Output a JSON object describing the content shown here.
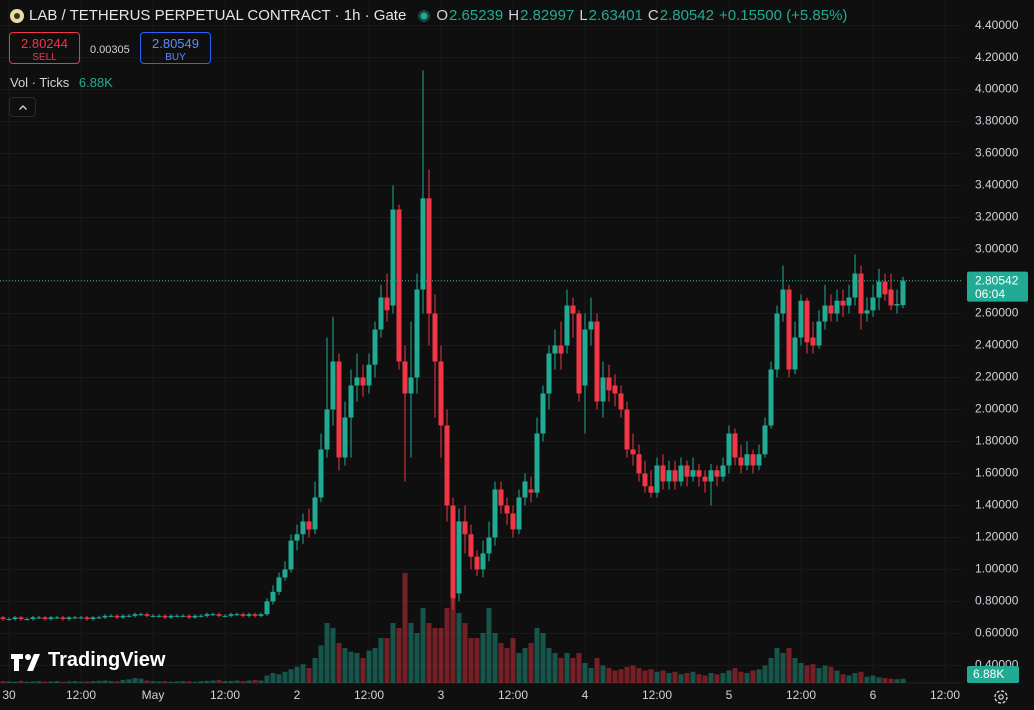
{
  "header": {
    "title": "LAB / TETHERUS PERPETUAL CONTRACT · 1h · Gate",
    "open_label": "O",
    "high_label": "H",
    "low_label": "L",
    "close_label": "C",
    "change": "+0.15500 (+5.85%)",
    "sell_price": "2.80244",
    "sell_label": "SELL",
    "spread": "0.00305",
    "buy_price": "2.80549",
    "buy_label": "BUY",
    "indicator": "Vol · Ticks",
    "last_volume": "6.88K",
    "countdown": "06:04",
    "brand": "TradingView"
  },
  "chart_data": {
    "type": "candlestick",
    "up_color": "#22ab94",
    "down_color": "#f23645",
    "grid": true,
    "categories": [
      null,
      "30",
      null,
      null,
      null,
      null,
      null,
      null,
      null,
      null,
      null,
      null,
      null,
      "12:00",
      null,
      null,
      null,
      null,
      null,
      null,
      null,
      null,
      null,
      null,
      null,
      "May",
      null,
      null,
      null,
      null,
      null,
      null,
      null,
      null,
      null,
      null,
      null,
      "12:00",
      null,
      null,
      null,
      null,
      null,
      null,
      null,
      null,
      null,
      null,
      null,
      "2",
      null,
      null,
      null,
      null,
      null,
      null,
      null,
      null,
      null,
      null,
      null,
      "12:00",
      null,
      null,
      null,
      null,
      null,
      null,
      null,
      null,
      null,
      null,
      null,
      "3",
      null,
      null,
      null,
      null,
      null,
      null,
      null,
      null,
      null,
      null,
      null,
      "12:00",
      null,
      null,
      null,
      null,
      null,
      null,
      null,
      null,
      null,
      null,
      null,
      "4",
      null,
      null,
      null,
      null,
      null,
      null,
      null,
      null,
      null,
      null,
      null,
      "12:00",
      null,
      null,
      null,
      null,
      null,
      null,
      null,
      null,
      null,
      null,
      null,
      "5",
      null,
      null,
      null,
      null,
      null,
      null,
      null,
      null,
      null,
      null,
      null,
      "12:00",
      null,
      null,
      null,
      null,
      null,
      null,
      null,
      null,
      null,
      null,
      null,
      "6",
      null,
      null,
      null,
      null,
      null,
      null,
      null,
      null,
      null,
      null,
      null,
      "12:00"
    ],
    "open": [
      0.7,
      0.69,
      0.69,
      0.7,
      0.69,
      0.69,
      0.7,
      0.7,
      0.69,
      0.7,
      0.7,
      0.69,
      0.7,
      0.7,
      0.7,
      0.69,
      0.7,
      0.7,
      0.71,
      0.71,
      0.7,
      0.71,
      0.71,
      0.72,
      0.72,
      0.71,
      0.71,
      0.71,
      0.7,
      0.71,
      0.71,
      0.71,
      0.7,
      0.71,
      0.71,
      0.72,
      0.72,
      0.71,
      0.71,
      0.72,
      0.72,
      0.71,
      0.72,
      0.71,
      0.72,
      0.8,
      0.86,
      0.95,
      1.0,
      1.18,
      1.22,
      1.3,
      1.25,
      1.45,
      1.75,
      2.0,
      2.3,
      1.7,
      1.95,
      2.15,
      2.2,
      2.15,
      2.28,
      2.5,
      2.7,
      2.65,
      3.25,
      2.3,
      2.1,
      2.2,
      2.75,
      3.32,
      2.6,
      2.3,
      1.9,
      1.4,
      0.85,
      1.3,
      1.22,
      1.08,
      1.0,
      1.1,
      1.2,
      1.5,
      1.4,
      1.35,
      1.25,
      1.45,
      1.5,
      1.48,
      1.85,
      2.1,
      2.35,
      2.4,
      2.4,
      2.65,
      2.6,
      2.15,
      2.5,
      2.55,
      2.05,
      2.2,
      2.15,
      2.1,
      2.0,
      1.75,
      1.72,
      1.6,
      1.52,
      1.48,
      1.65,
      1.55,
      1.62,
      1.55,
      1.65,
      1.58,
      1.62,
      1.58,
      1.55,
      1.62,
      1.58,
      1.65,
      1.85,
      1.7,
      1.65,
      1.72,
      1.65,
      1.72,
      1.9,
      2.25,
      2.6,
      2.75,
      2.25,
      2.45,
      2.68,
      2.45,
      2.4,
      2.55,
      2.65,
      2.6,
      2.68,
      2.65,
      2.7,
      2.85,
      2.6,
      2.62,
      2.7,
      2.8,
      2.75,
      2.65,
      2.65239,
      null,
      null,
      null,
      null,
      null,
      null,
      null
    ],
    "high": [
      0.71,
      0.7,
      0.71,
      0.71,
      0.7,
      0.71,
      0.71,
      0.71,
      0.71,
      0.71,
      0.71,
      0.71,
      0.71,
      0.71,
      0.71,
      0.71,
      0.71,
      0.72,
      0.72,
      0.72,
      0.72,
      0.72,
      0.73,
      0.73,
      0.73,
      0.72,
      0.72,
      0.72,
      0.72,
      0.72,
      0.72,
      0.72,
      0.72,
      0.72,
      0.73,
      0.73,
      0.73,
      0.72,
      0.73,
      0.73,
      0.73,
      0.73,
      0.73,
      0.73,
      0.82,
      0.9,
      0.98,
      1.05,
      1.22,
      1.28,
      1.35,
      1.38,
      1.55,
      1.85,
      2.45,
      2.58,
      2.35,
      2.05,
      2.25,
      2.35,
      2.28,
      2.35,
      2.55,
      2.78,
      2.85,
      3.4,
      3.28,
      2.4,
      2.55,
      2.85,
      4.12,
      3.5,
      2.72,
      2.4,
      2.0,
      1.45,
      1.38,
      1.4,
      1.28,
      1.12,
      1.18,
      1.3,
      1.55,
      1.55,
      1.45,
      1.4,
      1.5,
      1.6,
      1.58,
      1.95,
      2.15,
      2.4,
      2.5,
      2.55,
      2.75,
      2.7,
      2.62,
      2.6,
      2.7,
      2.6,
      2.3,
      2.28,
      2.22,
      2.15,
      2.05,
      1.85,
      1.78,
      1.68,
      1.62,
      1.7,
      1.72,
      1.68,
      1.68,
      1.7,
      1.68,
      1.7,
      1.66,
      1.62,
      1.66,
      1.65,
      1.7,
      1.9,
      1.88,
      1.78,
      1.8,
      1.75,
      1.78,
      1.95,
      2.3,
      2.65,
      2.9,
      2.78,
      2.55,
      2.72,
      2.7,
      2.55,
      2.62,
      2.78,
      2.72,
      2.75,
      2.75,
      2.78,
      2.97,
      2.9,
      2.7,
      2.78,
      2.88,
      2.85,
      2.85,
      2.75,
      2.82997,
      null,
      null,
      null,
      null,
      null,
      null,
      null
    ],
    "low": [
      0.68,
      0.68,
      0.68,
      0.68,
      0.68,
      0.68,
      0.69,
      0.68,
      0.68,
      0.69,
      0.68,
      0.68,
      0.69,
      0.69,
      0.68,
      0.68,
      0.69,
      0.69,
      0.7,
      0.69,
      0.69,
      0.7,
      0.7,
      0.71,
      0.7,
      0.7,
      0.7,
      0.69,
      0.69,
      0.7,
      0.7,
      0.69,
      0.69,
      0.7,
      0.7,
      0.71,
      0.7,
      0.7,
      0.7,
      0.71,
      0.7,
      0.7,
      0.7,
      0.7,
      0.71,
      0.78,
      0.84,
      0.93,
      0.98,
      1.12,
      1.16,
      1.2,
      1.22,
      1.42,
      1.7,
      1.9,
      1.62,
      1.65,
      1.7,
      2.05,
      2.08,
      2.1,
      2.2,
      2.45,
      2.55,
      2.6,
      2.25,
      1.55,
      1.7,
      2.1,
      2.6,
      2.4,
      1.95,
      1.7,
      1.3,
      0.75,
      0.8,
      1.1,
      1.0,
      0.96,
      0.95,
      1.05,
      1.15,
      1.35,
      1.28,
      1.2,
      1.22,
      1.4,
      1.42,
      1.45,
      1.8,
      2.0,
      2.25,
      2.25,
      2.35,
      2.45,
      2.05,
      1.85,
      2.4,
      2.0,
      1.95,
      2.05,
      2.02,
      1.95,
      1.7,
      1.65,
      1.55,
      1.48,
      1.45,
      1.45,
      1.5,
      1.5,
      1.5,
      1.52,
      1.52,
      1.55,
      1.52,
      1.48,
      1.4,
      1.52,
      1.55,
      1.6,
      1.65,
      1.6,
      1.62,
      1.6,
      1.62,
      1.7,
      1.88,
      2.2,
      2.55,
      2.2,
      2.22,
      2.4,
      2.35,
      2.35,
      2.38,
      2.5,
      2.55,
      2.55,
      2.58,
      2.6,
      2.65,
      2.5,
      2.55,
      2.58,
      2.62,
      2.68,
      2.62,
      2.6,
      2.63401,
      null,
      null,
      null,
      null,
      null,
      null,
      null
    ],
    "close": [
      0.69,
      0.69,
      0.7,
      0.69,
      0.69,
      0.7,
      0.7,
      0.69,
      0.7,
      0.7,
      0.69,
      0.7,
      0.7,
      0.7,
      0.69,
      0.7,
      0.7,
      0.71,
      0.71,
      0.7,
      0.71,
      0.71,
      0.72,
      0.72,
      0.71,
      0.71,
      0.71,
      0.7,
      0.71,
      0.71,
      0.71,
      0.7,
      0.71,
      0.71,
      0.72,
      0.72,
      0.71,
      0.71,
      0.72,
      0.72,
      0.71,
      0.72,
      0.71,
      0.72,
      0.8,
      0.86,
      0.95,
      1.0,
      1.18,
      1.22,
      1.3,
      1.25,
      1.45,
      1.75,
      2.0,
      2.3,
      1.7,
      1.95,
      2.15,
      2.2,
      2.15,
      2.28,
      2.5,
      2.7,
      2.62,
      3.25,
      2.3,
      2.1,
      2.2,
      2.75,
      3.32,
      2.6,
      2.3,
      1.9,
      1.4,
      0.82,
      1.3,
      1.22,
      1.08,
      1.0,
      1.1,
      1.2,
      1.5,
      1.4,
      1.35,
      1.25,
      1.45,
      1.55,
      1.48,
      1.85,
      2.1,
      2.35,
      2.4,
      2.35,
      2.65,
      2.6,
      2.1,
      2.5,
      2.55,
      2.05,
      2.2,
      2.12,
      2.1,
      2.0,
      1.75,
      1.72,
      1.6,
      1.52,
      1.48,
      1.65,
      1.55,
      1.62,
      1.55,
      1.65,
      1.58,
      1.62,
      1.58,
      1.55,
      1.62,
      1.58,
      1.65,
      1.85,
      1.7,
      1.65,
      1.72,
      1.65,
      1.72,
      1.9,
      2.25,
      2.6,
      2.75,
      2.25,
      2.45,
      2.68,
      2.42,
      2.4,
      2.55,
      2.65,
      2.6,
      2.68,
      2.65,
      2.7,
      2.85,
      2.6,
      2.62,
      2.7,
      2.8,
      2.72,
      2.65,
      2.66,
      2.80542,
      null,
      null,
      null,
      null,
      null,
      null,
      null
    ],
    "volume": [
      3000,
      2500,
      2000,
      3500,
      2000,
      2500,
      3000,
      2000,
      2500,
      3000,
      2000,
      2500,
      3000,
      2000,
      2500,
      3000,
      3500,
      4000,
      3000,
      2500,
      5000,
      6000,
      8000,
      7000,
      4000,
      3000,
      2500,
      3000,
      2000,
      2500,
      3000,
      2500,
      2000,
      3000,
      3500,
      4000,
      5000,
      3000,
      3500,
      4000,
      3000,
      4000,
      5000,
      4000,
      12000,
      16000,
      14000,
      18000,
      22000,
      26000,
      30000,
      24000,
      40000,
      60000,
      96000,
      88000,
      64000,
      56000,
      50000,
      48000,
      40000,
      52000,
      56000,
      72000,
      72000,
      96000,
      88000,
      176000,
      96000,
      80000,
      120000,
      96000,
      88000,
      88000,
      120000,
      136000,
      112000,
      96000,
      72000,
      72000,
      80000,
      120000,
      80000,
      64000,
      56000,
      72000,
      48000,
      56000,
      64000,
      88000,
      80000,
      56000,
      48000,
      40000,
      48000,
      40000,
      48000,
      32000,
      24000,
      40000,
      28000,
      24000,
      20000,
      22000,
      26000,
      28000,
      24000,
      20000,
      22000,
      18000,
      20000,
      16000,
      18000,
      14000,
      16000,
      18000,
      14000,
      12000,
      16000,
      14000,
      16000,
      20000,
      24000,
      18000,
      16000,
      20000,
      22000,
      28000,
      40000,
      56000,
      48000,
      56000,
      40000,
      32000,
      28000,
      30000,
      24000,
      28000,
      26000,
      20000,
      14000,
      12000,
      16000,
      18000,
      10000,
      12000,
      9000,
      8000,
      7000,
      6000,
      6880,
      null,
      null,
      null,
      null,
      null,
      null,
      null
    ],
    "ylim": [
      0.29,
      4.56
    ],
    "volume_ylim": [
      0,
      400000
    ],
    "yticks": [
      {
        "value": 0.4,
        "label": "0.40000"
      },
      {
        "value": 0.6,
        "label": "0.60000"
      },
      {
        "value": 0.8,
        "label": "0.80000"
      },
      {
        "value": 1.0,
        "label": "1.00000"
      },
      {
        "value": 1.2,
        "label": "1.20000"
      },
      {
        "value": 1.4,
        "label": "1.40000"
      },
      {
        "value": 1.6,
        "label": "1.60000"
      },
      {
        "value": 1.8,
        "label": "1.80000"
      },
      {
        "value": 2.0,
        "label": "2.00000"
      },
      {
        "value": 2.2,
        "label": "2.20000"
      },
      {
        "value": 2.4,
        "label": "2.40000"
      },
      {
        "value": 2.6,
        "label": "2.60000"
      },
      {
        "value": 2.8,
        "label": "2.80000"
      },
      {
        "value": 3.0,
        "label": "3.00000"
      },
      {
        "value": 3.2,
        "label": "3.20000"
      },
      {
        "value": 3.4,
        "label": "3.40000"
      },
      {
        "value": 3.6,
        "label": "3.60000"
      },
      {
        "value": 3.8,
        "label": "3.80000"
      },
      {
        "value": 4.0,
        "label": "4.00000"
      },
      {
        "value": 4.2,
        "label": "4.20000"
      },
      {
        "value": 4.4,
        "label": "4.40000"
      }
    ]
  }
}
